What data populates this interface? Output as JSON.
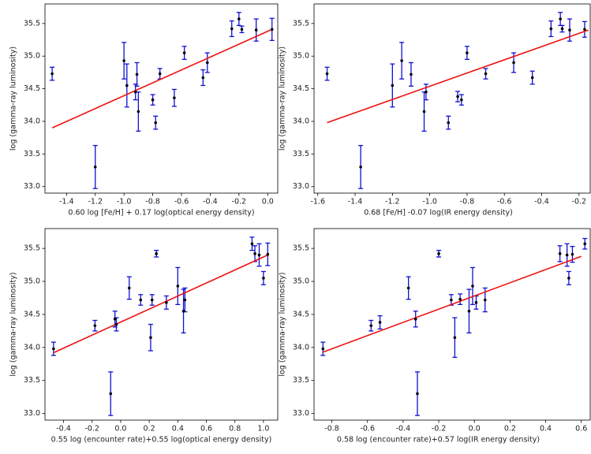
{
  "chart_data": [
    {
      "type": "scatter",
      "ylabel": "log (gamma-ray luminosity)",
      "xlabel": "0.60 log [Fe/H] + 0.17 log(optical energy density)",
      "x": [
        -1.5,
        -1.2,
        -1.0,
        -0.98,
        -0.92,
        -0.91,
        -0.9,
        -0.8,
        -0.78,
        -0.75,
        -0.65,
        -0.58,
        -0.45,
        -0.42,
        -0.25,
        -0.2,
        -0.18,
        -0.08,
        0.03
      ],
      "values": [
        34.73,
        33.3,
        34.93,
        34.55,
        34.45,
        34.72,
        34.15,
        34.33,
        33.98,
        34.73,
        34.36,
        35.05,
        34.67,
        34.9,
        35.42,
        35.57,
        35.41,
        35.4,
        35.41
      ],
      "errors": [
        0.1,
        0.33,
        0.28,
        0.33,
        0.12,
        0.18,
        0.3,
        0.08,
        0.1,
        0.08,
        0.13,
        0.1,
        0.12,
        0.15,
        0.12,
        0.1,
        0.05,
        0.17,
        0.17
      ],
      "color": "#000000",
      "error_color": "#1010d0",
      "fit": {
        "x": [
          -1.5,
          0.03
        ],
        "y": [
          33.9,
          35.41
        ],
        "color": "#ee1010"
      },
      "xlim": [
        -1.55,
        0.07
      ],
      "ylim": [
        32.9,
        35.8
      ],
      "xticks": [
        -1.4,
        -1.2,
        {
          "value": -1.0,
          "label": "-1.0"
        },
        -0.8,
        -0.6,
        -0.4,
        -0.2,
        {
          "value": 0,
          "label": "0.0"
        }
      ],
      "yticks": [
        {
          "value": 33,
          "label": "33.0"
        },
        33.5,
        {
          "value": 34,
          "label": "34.0"
        },
        34.5,
        {
          "value": 35,
          "label": "35.0"
        },
        35.5
      ]
    },
    {
      "type": "scatter",
      "ylabel": "log (gamma-ray luminosity)",
      "xlabel": "0.68 [Fe/H] -0.07 log(IR energy density)",
      "x": [
        -1.55,
        -1.37,
        -1.2,
        -1.15,
        -1.1,
        -1.03,
        -1.02,
        -0.9,
        -0.85,
        -0.83,
        -0.8,
        -0.7,
        -0.55,
        -0.45,
        -0.35,
        -0.3,
        -0.29,
        -0.25,
        -0.17
      ],
      "values": [
        34.73,
        33.3,
        34.55,
        34.93,
        34.72,
        34.15,
        34.45,
        33.98,
        34.38,
        34.33,
        35.05,
        34.73,
        34.9,
        34.67,
        35.42,
        35.57,
        35.42,
        35.4,
        35.41
      ],
      "errors": [
        0.1,
        0.33,
        0.33,
        0.28,
        0.18,
        0.3,
        0.12,
        0.1,
        0.08,
        0.08,
        0.1,
        0.08,
        0.15,
        0.1,
        0.12,
        0.1,
        0.05,
        0.17,
        0.12
      ],
      "color": "#000000",
      "error_color": "#1010d0",
      "fit": {
        "x": [
          -1.55,
          -0.15
        ],
        "y": [
          33.98,
          35.4
        ],
        "color": "#ee1010"
      },
      "xlim": [
        -1.62,
        -0.14
      ],
      "ylim": [
        32.9,
        35.8
      ],
      "xticks": [
        -1.6,
        -1.4,
        -1.2,
        {
          "value": -1.0,
          "label": "-1.0"
        },
        -0.8,
        -0.6,
        -0.4,
        -0.2
      ],
      "yticks": [
        {
          "value": 33,
          "label": "33.0"
        },
        33.5,
        {
          "value": 34,
          "label": "34.0"
        },
        34.5,
        {
          "value": 35,
          "label": "35.0"
        },
        35.5
      ]
    },
    {
      "type": "scatter",
      "ylabel": "log (gamma-ray luminosity)",
      "xlabel": "0.55 log (encounter rate)+0.55 log(optical energy density)",
      "x": [
        -0.47,
        -0.18,
        -0.04,
        -0.03,
        -0.07,
        0.06,
        0.14,
        0.21,
        0.22,
        0.25,
        0.32,
        0.4,
        0.44,
        0.45,
        0.92,
        0.94,
        0.97,
        1.0,
        1.03
      ],
      "values": [
        33.98,
        34.33,
        34.43,
        34.35,
        33.3,
        34.9,
        34.72,
        34.15,
        34.72,
        35.42,
        34.68,
        34.93,
        34.55,
        34.72,
        35.57,
        35.42,
        35.4,
        35.05,
        35.41
      ],
      "errors": [
        0.1,
        0.08,
        0.12,
        0.1,
        0.33,
        0.17,
        0.08,
        0.2,
        0.08,
        0.05,
        0.1,
        0.28,
        0.33,
        0.18,
        0.1,
        0.12,
        0.17,
        0.1,
        0.17
      ],
      "color": "#000000",
      "error_color": "#1010d0",
      "fit": {
        "x": [
          -0.47,
          1.03
        ],
        "y": [
          33.92,
          35.4
        ],
        "color": "#ee1010"
      },
      "xlim": [
        -0.53,
        1.1
      ],
      "ylim": [
        32.9,
        35.8
      ],
      "xticks": [
        -0.4,
        -0.2,
        {
          "value": 0,
          "label": "0.0"
        },
        0.2,
        0.4,
        0.6,
        0.8,
        {
          "value": 1,
          "label": "1.0"
        }
      ],
      "yticks": [
        {
          "value": 33,
          "label": "33.0"
        },
        33.5,
        {
          "value": 34,
          "label": "34.0"
        },
        34.5,
        {
          "value": 35,
          "label": "35.0"
        },
        35.5
      ]
    },
    {
      "type": "scatter",
      "ylabel": "log (gamma-ray luminosity)",
      "xlabel": "0.58 log (encounter rate)+0.57 log(IR energy density)",
      "x": [
        -0.85,
        -0.58,
        -0.53,
        -0.37,
        -0.33,
        -0.32,
        -0.2,
        -0.13,
        -0.11,
        -0.08,
        -0.03,
        -0.01,
        0.01,
        0.06,
        0.48,
        0.52,
        0.53,
        0.55,
        0.62
      ],
      "values": [
        33.98,
        34.33,
        34.38,
        34.9,
        34.43,
        33.3,
        35.42,
        34.72,
        34.15,
        34.73,
        34.55,
        34.93,
        34.68,
        34.72,
        35.42,
        35.4,
        35.05,
        35.41,
        35.57
      ],
      "errors": [
        0.1,
        0.08,
        0.1,
        0.17,
        0.12,
        0.33,
        0.05,
        0.08,
        0.3,
        0.08,
        0.33,
        0.28,
        0.1,
        0.18,
        0.12,
        0.17,
        0.1,
        0.12,
        0.08
      ],
      "color": "#000000",
      "error_color": "#1010d0",
      "fit": {
        "x": [
          -0.85,
          0.6
        ],
        "y": [
          33.93,
          35.38
        ],
        "color": "#ee1010"
      },
      "xlim": [
        -0.9,
        0.65
      ],
      "ylim": [
        32.9,
        35.8
      ],
      "xticks": [
        -0.8,
        -0.6,
        -0.4,
        -0.2,
        {
          "value": 0,
          "label": "0.0"
        },
        0.2,
        0.4,
        0.6
      ],
      "yticks": [
        {
          "value": 33,
          "label": "33.0"
        },
        33.5,
        {
          "value": 34,
          "label": "34.0"
        },
        34.5,
        {
          "value": 35,
          "label": "35.0"
        },
        35.5
      ]
    }
  ]
}
